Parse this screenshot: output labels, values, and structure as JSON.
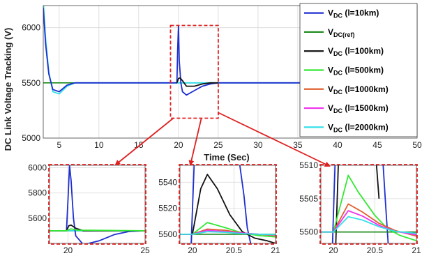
{
  "colors": {
    "ref": "#1a8a1a",
    "l10": "#1f2fd0",
    "l100": "#111111",
    "l500": "#33e833",
    "l1000": "#e06030",
    "l1500": "#ee33ee",
    "l2000": "#33e0e8",
    "zoom_box": "#e02020",
    "arrow": "#e02020"
  },
  "chart_data": [
    {
      "id": "main",
      "type": "line",
      "xlabel": "Time (Sec)",
      "ylabel": "DC Link Voltage Tracking (V)",
      "xlim": [
        3,
        50
      ],
      "ylim": [
        5000,
        6200
      ],
      "xticks": [
        5,
        10,
        15,
        20,
        25,
        30,
        35,
        40,
        45,
        50
      ],
      "yticks": [
        5000,
        5500,
        6000
      ],
      "grid": true,
      "legend": {
        "placement": "top-right",
        "entries": [
          {
            "key": "l10",
            "main": "V",
            "sub": "DC",
            "rest": " (l=10km)"
          },
          {
            "key": "ref",
            "main": "V",
            "sub": "DC(ref)",
            "rest": ""
          },
          {
            "key": "l100",
            "main": "V",
            "sub": "DC",
            "rest": " (l=100km)"
          },
          {
            "key": "l500",
            "main": "V",
            "sub": "DC",
            "rest": " (l=500km)"
          },
          {
            "key": "l1000",
            "main": "V",
            "sub": "DC",
            "rest": " (l=1000km)"
          },
          {
            "key": "l1500",
            "main": "V",
            "sub": "DC",
            "rest": " (l=1500km)"
          },
          {
            "key": "l2000",
            "main": "V",
            "sub": "DC",
            "rest": " (l=2000km)"
          }
        ]
      },
      "zoom_region": {
        "x": [
          19,
          25
        ],
        "y": [
          5180,
          6020
        ]
      },
      "series": [
        {
          "key": "ref",
          "x": [
            3,
            50
          ],
          "y": [
            5500,
            5500
          ]
        },
        {
          "key": "l2000",
          "x": [
            3,
            3.3,
            3.7,
            4.2,
            5,
            6,
            7,
            50
          ],
          "y": [
            6250,
            5900,
            5600,
            5420,
            5400,
            5470,
            5500,
            5500
          ]
        },
        {
          "key": "l10",
          "x": [
            3,
            3.3,
            3.7,
            4.2,
            5,
            6,
            7,
            19.8,
            19.9,
            20,
            20.1,
            20.3,
            20.5,
            21,
            22,
            23,
            24,
            25,
            50
          ],
          "y": [
            6180,
            5850,
            5580,
            5440,
            5420,
            5480,
            5500,
            5500,
            5800,
            6020,
            5700,
            5500,
            5420,
            5390,
            5430,
            5470,
            5490,
            5500,
            5500
          ]
        },
        {
          "key": "l100",
          "x": [
            19.8,
            20,
            20.2,
            20.5,
            21,
            22,
            23,
            24,
            25
          ],
          "y": [
            5500,
            5540,
            5545,
            5520,
            5470,
            5470,
            5490,
            5500,
            5500
          ]
        }
      ]
    },
    {
      "id": "zoom1",
      "type": "line",
      "xlim": [
        18.8,
        25
      ],
      "ylim": [
        5400,
        6020
      ],
      "xticks": [
        20,
        25
      ],
      "yticks": [
        5600,
        5800,
        6000
      ],
      "grid": true,
      "series": [
        {
          "key": "ref",
          "x": [
            18.8,
            25
          ],
          "y": [
            5500,
            5500
          ]
        },
        {
          "key": "l2000",
          "x": [
            18.8,
            25
          ],
          "y": [
            5500,
            5500
          ]
        },
        {
          "key": "l10",
          "x": [
            18.8,
            19.9,
            20,
            20.1,
            20.2,
            20.35,
            20.5,
            21,
            22,
            23,
            24,
            25
          ],
          "y": [
            5500,
            5500,
            5750,
            6020,
            5900,
            5600,
            5460,
            5390,
            5420,
            5470,
            5495,
            5500
          ]
        },
        {
          "key": "l100",
          "x": [
            18.8,
            19.9,
            20.05,
            20.2,
            20.5,
            21,
            21.5,
            25
          ],
          "y": [
            5500,
            5500,
            5540,
            5545,
            5520,
            5500,
            5500,
            5500
          ]
        },
        {
          "key": "l500",
          "x": [
            18.8,
            19.9,
            20.2,
            20.6,
            25
          ],
          "y": [
            5500,
            5500,
            5515,
            5505,
            5500
          ]
        }
      ]
    },
    {
      "id": "zoom2",
      "type": "line",
      "xlim": [
        19.85,
        21
      ],
      "ylim": [
        5493,
        5553
      ],
      "xticks": [
        20,
        20.5,
        21
      ],
      "yticks": [
        5500,
        5520,
        5540
      ],
      "grid": true,
      "series": [
        {
          "key": "l10",
          "x": [
            19.985,
            20.02
          ],
          "y": [
            5493,
            5553
          ]
        },
        {
          "key": "l10",
          "x": [
            20.57,
            20.62,
            20.66,
            20.7
          ],
          "y": [
            5553,
            5530,
            5505,
            5493
          ]
        },
        {
          "key": "ref",
          "x": [
            19.85,
            21
          ],
          "y": [
            5500,
            5500
          ]
        },
        {
          "key": "l100",
          "x": [
            19.85,
            20,
            20.1,
            20.18,
            20.3,
            20.45,
            20.6,
            20.75,
            20.9,
            21
          ],
          "y": [
            5500,
            5500,
            5535,
            5546,
            5535,
            5515,
            5502,
            5497,
            5495,
            5493
          ]
        },
        {
          "key": "l500",
          "x": [
            19.85,
            20,
            20.18,
            20.4,
            20.6,
            20.8,
            21
          ],
          "y": [
            5500,
            5500,
            5509,
            5505,
            5501,
            5499,
            5498
          ]
        },
        {
          "key": "l1000",
          "x": [
            19.85,
            20,
            20.18,
            20.4,
            20.6,
            20.8,
            21
          ],
          "y": [
            5500,
            5500,
            5504,
            5503,
            5501,
            5500,
            5499
          ]
        },
        {
          "key": "l1500",
          "x": [
            19.85,
            20,
            20.18,
            20.4,
            20.6,
            20.8,
            21
          ],
          "y": [
            5500,
            5500,
            5503,
            5502,
            5501,
            5500,
            5499.5
          ]
        },
        {
          "key": "l2000",
          "x": [
            19.85,
            20,
            20.18,
            20.4,
            20.6,
            20.8,
            21
          ],
          "y": [
            5500,
            5500,
            5502,
            5501.5,
            5500.5,
            5500,
            5499.7
          ]
        }
      ]
    },
    {
      "id": "zoom3",
      "type": "line",
      "xlim": [
        19.85,
        21
      ],
      "ylim": [
        5498.3,
        5510
      ],
      "xticks": [
        20,
        20.5,
        21
      ],
      "yticks": [
        5500,
        5505,
        5510
      ],
      "grid": true,
      "series": [
        {
          "key": "l10",
          "x": [
            19.99,
            20.02
          ],
          "y": [
            5498.3,
            5510
          ]
        },
        {
          "key": "l10",
          "x": [
            20.6,
            20.63,
            20.66
          ],
          "y": [
            5510,
            5504,
            5498.3
          ]
        },
        {
          "key": "l100",
          "x": [
            20.03,
            20.06
          ],
          "y": [
            5498.3,
            5510
          ]
        },
        {
          "key": "l100",
          "x": [
            20.52,
            20.55
          ],
          "y": [
            5510,
            5505
          ]
        },
        {
          "key": "ref",
          "x": [
            19.85,
            21
          ],
          "y": [
            5500,
            5500
          ]
        },
        {
          "key": "l500",
          "x": [
            19.85,
            20,
            20.18,
            20.3,
            20.5,
            20.65,
            20.8,
            21
          ],
          "y": [
            5500,
            5500,
            5508.5,
            5506,
            5502.5,
            5500.5,
            5499.5,
            5498.7
          ]
        },
        {
          "key": "l1000",
          "x": [
            19.85,
            20,
            20.18,
            20.35,
            20.55,
            20.75,
            21
          ],
          "y": [
            5500,
            5500,
            5504.2,
            5503,
            5501.3,
            5500.2,
            5499.4
          ]
        },
        {
          "key": "l1500",
          "x": [
            19.85,
            20,
            20.18,
            20.35,
            20.55,
            20.75,
            21
          ],
          "y": [
            5500,
            5500,
            5503.2,
            5502.4,
            5501,
            5500.1,
            5499.6
          ]
        },
        {
          "key": "l2000",
          "x": [
            19.85,
            20,
            20.18,
            20.35,
            20.55,
            20.75,
            21
          ],
          "y": [
            5500,
            5500,
            5502.3,
            5501.8,
            5500.8,
            5500.1,
            5499.8
          ]
        }
      ]
    }
  ]
}
